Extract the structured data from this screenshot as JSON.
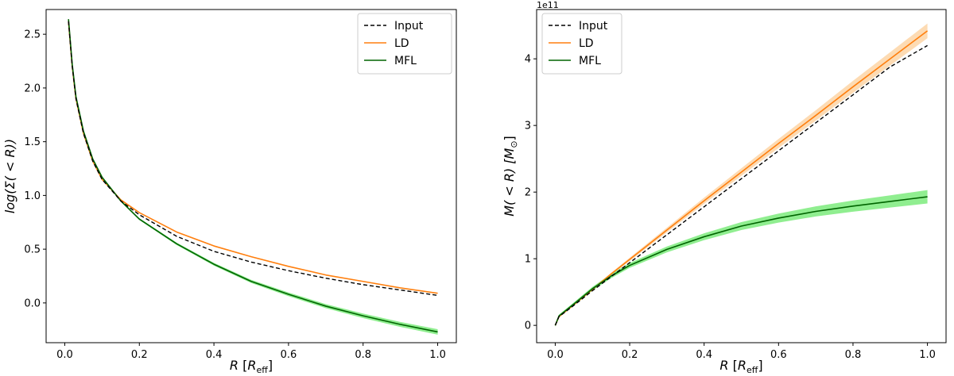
{
  "chart_data": [
    {
      "type": "line",
      "title": "",
      "xlabel_main": "R",
      "xlabel_sub": "eff",
      "ylabel": "log(Σ( < R))",
      "xlim": [
        -0.05,
        1.05
      ],
      "ylim": [
        -0.37,
        2.73
      ],
      "xticks": [
        0.0,
        0.2,
        0.4,
        0.6,
        0.8,
        1.0
      ],
      "xtick_labels": [
        "0.0",
        "0.2",
        "0.4",
        "0.6",
        "0.8",
        "1.0"
      ],
      "yticks": [
        0.0,
        0.5,
        1.0,
        1.5,
        2.0,
        2.5
      ],
      "ytick_labels": [
        "0.0",
        "0.5",
        "1.0",
        "1.5",
        "2.0",
        "2.5"
      ],
      "legend": [
        "Input",
        "LD",
        "MFL"
      ],
      "x": [
        0.01,
        0.02,
        0.03,
        0.05,
        0.075,
        0.1,
        0.15,
        0.2,
        0.3,
        0.4,
        0.5,
        0.6,
        0.7,
        0.8,
        0.9,
        1.0
      ],
      "series": [
        {
          "name": "Input",
          "style": "dashed",
          "color": "#000000",
          "values": [
            2.62,
            2.2,
            1.9,
            1.58,
            1.32,
            1.15,
            0.95,
            0.82,
            0.62,
            0.48,
            0.38,
            0.3,
            0.23,
            0.17,
            0.12,
            0.07
          ]
        },
        {
          "name": "LD",
          "style": "solid",
          "color": "#ff7f0e",
          "values": [
            2.62,
            2.2,
            1.9,
            1.58,
            1.32,
            1.15,
            0.96,
            0.84,
            0.66,
            0.53,
            0.43,
            0.34,
            0.26,
            0.2,
            0.14,
            0.09
          ]
        },
        {
          "name": "MFL",
          "style": "solid",
          "color": "#006400",
          "values": [
            2.64,
            2.22,
            1.92,
            1.6,
            1.34,
            1.17,
            0.95,
            0.78,
            0.55,
            0.36,
            0.2,
            0.08,
            -0.03,
            -0.12,
            -0.2,
            -0.27
          ],
          "band": 0.025,
          "band_color": "#90ee90"
        }
      ]
    },
    {
      "type": "line",
      "title": "",
      "offset_text": "1e11",
      "xlabel_main": "R",
      "xlabel_sub": "eff",
      "ylabel": "M( < R) [M",
      "xlim": [
        -0.05,
        1.05
      ],
      "ylim": [
        -0.26,
        4.74
      ],
      "xticks": [
        0.0,
        0.2,
        0.4,
        0.6,
        0.8,
        1.0
      ],
      "xtick_labels": [
        "0.0",
        "0.2",
        "0.4",
        "0.6",
        "0.8",
        "1.0"
      ],
      "yticks": [
        0,
        1,
        2,
        3,
        4
      ],
      "ytick_labels": [
        "0",
        "1",
        "2",
        "3",
        "4"
      ],
      "legend": [
        "Input",
        "LD",
        "MFL"
      ],
      "x": [
        0.0,
        0.01,
        0.05,
        0.1,
        0.15,
        0.2,
        0.3,
        0.4,
        0.5,
        0.6,
        0.7,
        0.8,
        0.9,
        1.0
      ],
      "series": [
        {
          "name": "Input",
          "style": "dashed",
          "color": "#000000",
          "values": [
            0.0,
            0.13,
            0.3,
            0.52,
            0.73,
            0.94,
            1.36,
            1.78,
            2.2,
            2.62,
            3.04,
            3.46,
            3.88,
            4.2
          ]
        },
        {
          "name": "LD",
          "style": "solid",
          "color": "#ff7f0e",
          "values": [
            0.0,
            0.13,
            0.31,
            0.54,
            0.77,
            0.99,
            1.43,
            1.87,
            2.3,
            2.73,
            3.15,
            3.58,
            4.0,
            4.42
          ],
          "band_frac": 0.025,
          "band_color": "#fddbb3"
        },
        {
          "name": "MFL",
          "style": "solid",
          "color": "#006400",
          "values": [
            0.0,
            0.14,
            0.32,
            0.55,
            0.74,
            0.9,
            1.14,
            1.33,
            1.49,
            1.61,
            1.71,
            1.79,
            1.86,
            1.93
          ],
          "band": 0.1,
          "band_color": "#90ee90"
        }
      ]
    }
  ]
}
